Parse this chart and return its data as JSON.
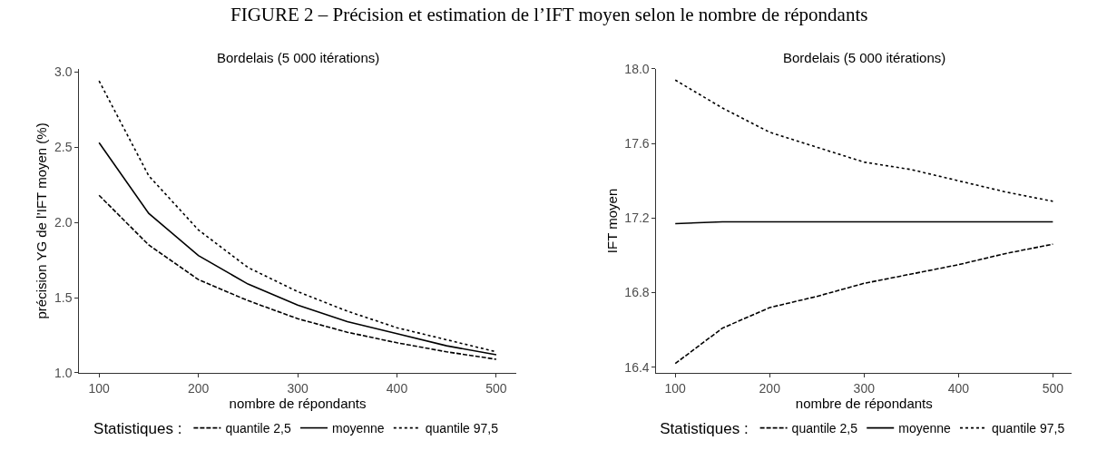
{
  "chart_data": [
    {
      "type": "line",
      "title": "Bordelais (5 000 itérations)",
      "annotations": [
        "FIGURE 2 – Précision et estimation de l’IFT moyen selon le nombre de répondants"
      ],
      "xlabel": "nombre de répondants",
      "ylabel": "précision YG de l’IFT moyen (%)",
      "legend_title": "Statistiques :",
      "legend": "bottom",
      "x": [
        100,
        150,
        200,
        250,
        300,
        350,
        400,
        450,
        500
      ],
      "xlim": [
        80,
        520
      ],
      "xticks": [
        100,
        200,
        300,
        400,
        500
      ],
      "ylim": [
        1.0,
        3.02
      ],
      "yticks": [
        {
          "value": 1.0,
          "label": "1.0"
        },
        1.5,
        {
          "value": 2.0,
          "label": "2.0"
        },
        2.5,
        {
          "value": 3.0,
          "label": "3.0"
        }
      ],
      "series": [
        {
          "name": "quantile 2,5",
          "color": "#000000",
          "line_style": "dashed",
          "values": [
            2.18,
            1.85,
            1.62,
            1.48,
            1.36,
            1.27,
            1.2,
            1.14,
            1.09
          ]
        },
        {
          "name": "moyenne",
          "color": "#000000",
          "line_style": "solid",
          "values": [
            2.53,
            2.06,
            1.78,
            1.59,
            1.45,
            1.34,
            1.26,
            1.18,
            1.12
          ]
        },
        {
          "name": "quantile 97,5",
          "color": "#000000",
          "line_style": "dotted",
          "values": [
            2.94,
            2.31,
            1.95,
            1.7,
            1.54,
            1.41,
            1.3,
            1.22,
            1.14
          ]
        }
      ]
    },
    {
      "type": "line",
      "title": "Bordelais (5 000 itérations)",
      "xlabel": "nombre de répondants",
      "ylabel": "IFT moyen",
      "legend_title": "Statistiques :",
      "legend": "bottom",
      "x": [
        100,
        150,
        200,
        250,
        300,
        350,
        400,
        450,
        500
      ],
      "xlim": [
        80,
        520
      ],
      "xticks": [
        100,
        200,
        300,
        400,
        500
      ],
      "ylim": [
        16.37,
        18.0
      ],
      "yticks": [
        16.4,
        16.8,
        17.2,
        17.6,
        {
          "value": 18.0,
          "label": "18.0"
        }
      ],
      "series": [
        {
          "name": "quantile 2,5",
          "color": "#000000",
          "line_style": "dashed",
          "values": [
            16.42,
            16.61,
            16.72,
            16.78,
            16.85,
            16.9,
            16.95,
            17.01,
            17.06
          ]
        },
        {
          "name": "moyenne",
          "color": "#000000",
          "line_style": "solid",
          "values": [
            17.17,
            17.18,
            17.18,
            17.18,
            17.18,
            17.18,
            17.18,
            17.18,
            17.18
          ]
        },
        {
          "name": "quantile 97,5",
          "color": "#000000",
          "line_style": "dotted",
          "values": [
            17.94,
            17.79,
            17.66,
            17.58,
            17.5,
            17.46,
            17.4,
            17.34,
            17.29
          ]
        }
      ]
    }
  ]
}
